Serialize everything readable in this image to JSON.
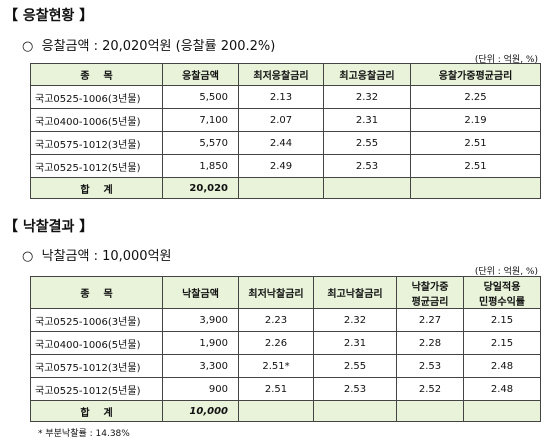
{
  "section1": {
    "title": "【 응찰현황 】",
    "summary": "○  응찰금액 : 20,020억원 (응찰률 200.2%)",
    "unit": "(단위 : 억원, %)",
    "table": {
      "header": [
        "종    목",
        "응찰금액",
        "최저응찰금리",
        "최고응찰금리",
        "응찰가중평균금리"
      ],
      "rows": [
        [
          "국고0525-1006(3년물)",
          "5,500",
          "2.13",
          "2.32",
          "2.25"
        ],
        [
          "국고0400-1006(5년물)",
          "7,100",
          "2.07",
          "2.31",
          "2.19"
        ],
        [
          "국고0575-1012(3년물)",
          "5,570",
          "2.44",
          "2.55",
          "2.51"
        ],
        [
          "국고0525-1012(5년물)",
          "1,850",
          "2.49",
          "2.53",
          "2.51"
        ]
      ],
      "total": [
        "합    계",
        "20,020"
      ]
    }
  },
  "section2": {
    "title": "【 낙찰결과 】",
    "summary": "○  낙찰금액 : 10,000억원",
    "unit": "(단위 : 억원, %)",
    "table": {
      "header": [
        [
          "종    목"
        ],
        [
          "낙찰금액"
        ],
        [
          "최저낙찰금리"
        ],
        [
          "최고낙찰금리"
        ],
        [
          "낙찰가중",
          "평균금리"
        ],
        [
          "당일적용",
          "민평수익률"
        ]
      ],
      "rows": [
        [
          "국고0525-1006(3년물)",
          "3,900",
          "2.23",
          "2.32",
          "2.27",
          "2.15"
        ],
        [
          "국고0400-1006(5년물)",
          "1,900",
          "2.26",
          "2.31",
          "2.28",
          "2.15"
        ],
        [
          "국고0575-1012(3년물)",
          "3,300",
          "2.51*",
          "2.55",
          "2.53",
          "2.48"
        ],
        [
          "국고0525-1012(5년물)",
          "900",
          "2.51",
          "2.53",
          "2.52",
          "2.48"
        ]
      ],
      "total": [
        "합    계",
        "10,000"
      ]
    }
  },
  "footnote": "* 부분낙찰률 : 14.38%"
}
